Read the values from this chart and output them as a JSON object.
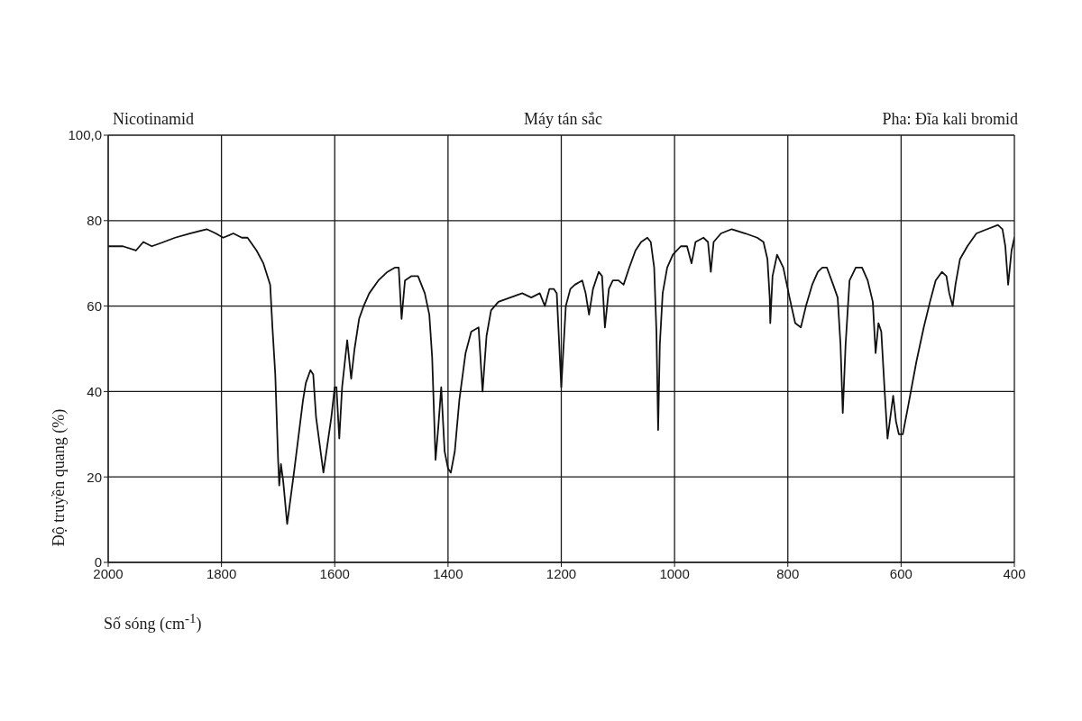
{
  "chart_data": {
    "type": "line",
    "title": "Nicotinamid",
    "annotations": [
      "Máy tán sắc",
      "Pha: Đĩa kali bromid"
    ],
    "xlabel": "Số sóng (cm$^{-1}$)",
    "ylabel": "Độ truyền quang (%)",
    "xlim": [
      2000,
      400
    ],
    "xticks": [
      2000,
      1800,
      1600,
      1400,
      1200,
      1000,
      800,
      600,
      400
    ],
    "ylim": [
      0,
      100
    ],
    "yticks": [
      0,
      20,
      40,
      60,
      80,
      {
        "value": 100,
        "label": "100,0"
      }
    ],
    "grid": true,
    "color": "#111111",
    "x": [
      2000,
      1974,
      1951,
      1938,
      1923,
      1902,
      1882,
      1856,
      1826,
      1810,
      1797,
      1779,
      1764,
      1754,
      1738,
      1726,
      1714,
      1710,
      1705,
      1700,
      1698,
      1695,
      1691,
      1684,
      1672,
      1656,
      1651,
      1643,
      1638,
      1633,
      1620,
      1606,
      1600,
      1597,
      1592,
      1587,
      1578,
      1571,
      1565,
      1557,
      1549,
      1539,
      1523,
      1507,
      1494,
      1487,
      1482,
      1476,
      1465,
      1453,
      1441,
      1433,
      1428,
      1422,
      1417,
      1412,
      1406,
      1400,
      1395,
      1388,
      1380,
      1369,
      1359,
      1346,
      1339,
      1332,
      1324,
      1311,
      1290,
      1269,
      1253,
      1238,
      1229,
      1221,
      1213,
      1208,
      1200,
      1192,
      1184,
      1176,
      1163,
      1157,
      1151,
      1144,
      1134,
      1128,
      1123,
      1116,
      1109,
      1099,
      1090,
      1080,
      1069,
      1059,
      1048,
      1042,
      1036,
      1032,
      1029,
      1026,
      1021,
      1013,
      1003,
      989,
      978,
      970,
      963,
      949,
      941,
      936,
      931,
      918,
      899,
      875,
      854,
      843,
      836,
      832,
      831,
      827,
      819,
      808,
      797,
      787,
      777,
      768,
      757,
      747,
      739,
      731,
      720,
      712,
      707,
      703,
      698,
      691,
      680,
      669,
      659,
      650,
      645,
      640,
      635,
      629,
      624,
      620,
      614,
      609,
      604,
      597,
      587,
      573,
      560,
      549,
      539,
      528,
      520,
      515,
      509,
      504,
      496,
      483,
      467,
      448,
      429,
      421,
      416,
      411,
      405,
      400
    ],
    "values": [
      74,
      74,
      73,
      75,
      74,
      75,
      76,
      77,
      78,
      77,
      76,
      77,
      76,
      76,
      73,
      70,
      65,
      55,
      44,
      24,
      18,
      23,
      19,
      9,
      21,
      38,
      42,
      45,
      44,
      34,
      21,
      34,
      41,
      41,
      29,
      41,
      52,
      43,
      50,
      57,
      60,
      63,
      66,
      68,
      69,
      69,
      57,
      66,
      67,
      67,
      63,
      58,
      48,
      24,
      32,
      41,
      26,
      22,
      21,
      26,
      38,
      49,
      54,
      55,
      40,
      53,
      59,
      61,
      62,
      63,
      62,
      63,
      60,
      64,
      64,
      63,
      41,
      60,
      64,
      65,
      66,
      63,
      58,
      64,
      68,
      67,
      55,
      64,
      66,
      66,
      65,
      69,
      73,
      75,
      76,
      75,
      69,
      54,
      31,
      51,
      63,
      69,
      72,
      74,
      74,
      70,
      75,
      76,
      75,
      68,
      75,
      77,
      78,
      77,
      76,
      75,
      71,
      62,
      56,
      67,
      72,
      69,
      62,
      56,
      55,
      60,
      65,
      68,
      69,
      69,
      65,
      62,
      51,
      35,
      51,
      66,
      69,
      69,
      66,
      61,
      49,
      56,
      54,
      40,
      29,
      33,
      39,
      33,
      30,
      30,
      37,
      47,
      55,
      61,
      66,
      68,
      67,
      63,
      60,
      65,
      71,
      74,
      77,
      78,
      79,
      78,
      74,
      65,
      73,
      76
    ]
  }
}
